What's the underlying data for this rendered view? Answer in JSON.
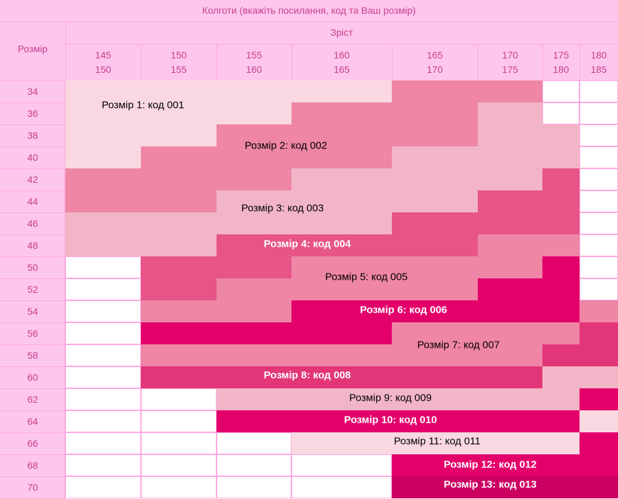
{
  "table": {
    "title": "Колготи (вкажіть посилання, код та Ваш розмір)",
    "size_header": "Розмір",
    "height_header": "Зріст",
    "height_columns": [
      {
        "top": "145",
        "bottom": "150"
      },
      {
        "top": "150",
        "bottom": "155"
      },
      {
        "top": "155",
        "bottom": "160"
      },
      {
        "top": "160",
        "bottom": "165"
      },
      {
        "top": "165",
        "bottom": "170"
      },
      {
        "top": "170",
        "bottom": "175"
      },
      {
        "top": "175",
        "bottom": "180"
      },
      {
        "top": "180",
        "bottom": "185"
      }
    ],
    "size_rows": [
      "34",
      "36",
      "38",
      "40",
      "42",
      "44",
      "46",
      "48",
      "50",
      "52",
      "54",
      "56",
      "58",
      "60",
      "62",
      "64",
      "66",
      "68",
      "70"
    ]
  },
  "colors": {
    "header_bg": "#fec6ec",
    "header_text": "#c5408f",
    "grid_line": "#fea8e0",
    "empty": "#ffffff",
    "size_1": "#f9d8e1",
    "size_2": "#ef86a6",
    "size_3": "#f2b5c8",
    "size_4": "#e75488",
    "size_5": "#ef86a6",
    "size_6": "#e3006b",
    "size_7": "#ef86a6",
    "size_8": "#e23678",
    "size_9": "#f2b5c8",
    "size_10": "#e3006b",
    "size_11": "#f9d8e1",
    "size_12": "#e3006b",
    "size_13": "#cb0061"
  },
  "size_codes": [
    {
      "label": "Розмір 1: код 001",
      "color": "size_1",
      "text_color": "#000000",
      "bold": false
    },
    {
      "label": "Розмір 2: код 002",
      "color": "size_2",
      "text_color": "#000000",
      "bold": false
    },
    {
      "label": "Розмір 3: код 003",
      "color": "size_3",
      "text_color": "#000000",
      "bold": false
    },
    {
      "label": "Розмір 4: код 004",
      "color": "size_4",
      "text_color": "#ffffff",
      "bold": true
    },
    {
      "label": "Розмір 5: код 005",
      "color": "size_5",
      "text_color": "#000000",
      "bold": false
    },
    {
      "label": "Розмір 6: код 006",
      "color": "size_6",
      "text_color": "#ffffff",
      "bold": true
    },
    {
      "label": "Розмір 7: код 007",
      "color": "size_7",
      "text_color": "#000000",
      "bold": false
    },
    {
      "label": "Розмір 8: код 008",
      "color": "size_8",
      "text_color": "#ffffff",
      "bold": true
    },
    {
      "label": "Розмір 9: код 009",
      "color": "size_9",
      "text_color": "#000000",
      "bold": false
    },
    {
      "label": "Розмір 10: код 010",
      "color": "size_10",
      "text_color": "#ffffff",
      "bold": true
    },
    {
      "label": "Розмір 11: код 011",
      "color": "size_11",
      "text_color": "#000000",
      "bold": false
    },
    {
      "label": "Розмір 12: код 012",
      "color": "size_12",
      "text_color": "#ffffff",
      "bold": true
    },
    {
      "label": "Розмір 13: код 013",
      "color": "size_13",
      "text_color": "#ffffff",
      "bold": true
    }
  ],
  "size_grid": [
    [
      1,
      1,
      1,
      1,
      2,
      2,
      0,
      0
    ],
    [
      1,
      1,
      1,
      2,
      2,
      3,
      0,
      0
    ],
    [
      1,
      1,
      2,
      2,
      2,
      3,
      3,
      0
    ],
    [
      1,
      2,
      2,
      2,
      3,
      3,
      3,
      0
    ],
    [
      2,
      2,
      2,
      3,
      3,
      3,
      4,
      0
    ],
    [
      2,
      2,
      3,
      3,
      3,
      4,
      4,
      0
    ],
    [
      3,
      3,
      3,
      3,
      4,
      4,
      4,
      0
    ],
    [
      3,
      3,
      4,
      4,
      4,
      5,
      5,
      0
    ],
    [
      0,
      4,
      4,
      5,
      5,
      5,
      6,
      0
    ],
    [
      0,
      4,
      5,
      5,
      5,
      6,
      6,
      0
    ],
    [
      0,
      5,
      5,
      6,
      6,
      6,
      6,
      7
    ],
    [
      0,
      6,
      6,
      6,
      7,
      7,
      7,
      8
    ],
    [
      0,
      7,
      7,
      7,
      7,
      7,
      8,
      8
    ],
    [
      0,
      8,
      8,
      8,
      8,
      8,
      9,
      9
    ],
    [
      0,
      0,
      9,
      9,
      9,
      9,
      9,
      10
    ],
    [
      0,
      0,
      10,
      10,
      10,
      10,
      10,
      11
    ],
    [
      0,
      0,
      0,
      11,
      11,
      11,
      11,
      12
    ],
    [
      0,
      0,
      0,
      0,
      12,
      12,
      12,
      12
    ],
    [
      0,
      0,
      0,
      0,
      13,
      13,
      13,
      13
    ]
  ]
}
